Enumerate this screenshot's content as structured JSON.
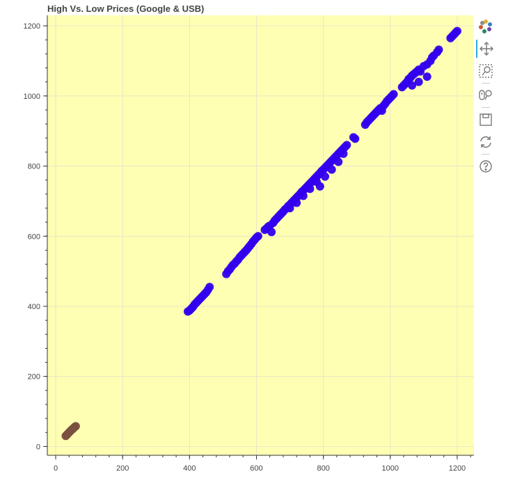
{
  "chart_data": {
    "type": "scatter",
    "title": "High Vs. Low Prices (Google & USB)",
    "xlabel": "",
    "ylabel": "",
    "xlim": [
      -25,
      1250
    ],
    "ylim": [
      -25,
      1230
    ],
    "x_ticks": [
      0,
      200,
      400,
      600,
      800,
      1000,
      1200
    ],
    "y_ticks": [
      0,
      200,
      400,
      600,
      800,
      1000,
      1200
    ],
    "background_color": "#ffffb3",
    "grid": true,
    "series": [
      {
        "color": "#3300ee",
        "points": [
          [
            395,
            385
          ],
          [
            400,
            388
          ],
          [
            405,
            393
          ],
          [
            410,
            398
          ],
          [
            415,
            405
          ],
          [
            420,
            410
          ],
          [
            425,
            415
          ],
          [
            430,
            420
          ],
          [
            435,
            425
          ],
          [
            440,
            430
          ],
          [
            445,
            435
          ],
          [
            450,
            440
          ],
          [
            455,
            447
          ],
          [
            460,
            455
          ],
          [
            510,
            492
          ],
          [
            515,
            500
          ],
          [
            520,
            505
          ],
          [
            525,
            512
          ],
          [
            530,
            518
          ],
          [
            535,
            522
          ],
          [
            540,
            528
          ],
          [
            545,
            533
          ],
          [
            550,
            540
          ],
          [
            555,
            545
          ],
          [
            560,
            550
          ],
          [
            565,
            555
          ],
          [
            570,
            560
          ],
          [
            575,
            566
          ],
          [
            580,
            572
          ],
          [
            585,
            578
          ],
          [
            590,
            585
          ],
          [
            595,
            590
          ],
          [
            600,
            596
          ],
          [
            605,
            600
          ],
          [
            625,
            618
          ],
          [
            630,
            622
          ],
          [
            635,
            627
          ],
          [
            640,
            630
          ],
          [
            645,
            612
          ],
          [
            650,
            638
          ],
          [
            655,
            645
          ],
          [
            660,
            650
          ],
          [
            665,
            655
          ],
          [
            670,
            660
          ],
          [
            675,
            665
          ],
          [
            680,
            670
          ],
          [
            685,
            676
          ],
          [
            690,
            680
          ],
          [
            695,
            686
          ],
          [
            700,
            690
          ],
          [
            705,
            695
          ],
          [
            710,
            700
          ],
          [
            715,
            705
          ],
          [
            720,
            710
          ],
          [
            725,
            715
          ],
          [
            730,
            720
          ],
          [
            735,
            726
          ],
          [
            740,
            730
          ],
          [
            745,
            735
          ],
          [
            750,
            740
          ],
          [
            755,
            745
          ],
          [
            760,
            750
          ],
          [
            765,
            755
          ],
          [
            770,
            760
          ],
          [
            775,
            765
          ],
          [
            780,
            770
          ],
          [
            785,
            775
          ],
          [
            790,
            780
          ],
          [
            795,
            786
          ],
          [
            800,
            790
          ],
          [
            805,
            795
          ],
          [
            810,
            800
          ],
          [
            815,
            805
          ],
          [
            820,
            810
          ],
          [
            825,
            815
          ],
          [
            830,
            820
          ],
          [
            835,
            825
          ],
          [
            840,
            830
          ],
          [
            845,
            835
          ],
          [
            850,
            840
          ],
          [
            855,
            845
          ],
          [
            860,
            850
          ],
          [
            865,
            855
          ],
          [
            870,
            860
          ],
          [
            700,
            680
          ],
          [
            720,
            695
          ],
          [
            740,
            715
          ],
          [
            760,
            735
          ],
          [
            780,
            755
          ],
          [
            790,
            742
          ],
          [
            805,
            770
          ],
          [
            825,
            790
          ],
          [
            845,
            812
          ],
          [
            860,
            835
          ],
          [
            890,
            882
          ],
          [
            895,
            878
          ],
          [
            925,
            918
          ],
          [
            930,
            925
          ],
          [
            935,
            930
          ],
          [
            940,
            935
          ],
          [
            945,
            940
          ],
          [
            950,
            945
          ],
          [
            955,
            950
          ],
          [
            960,
            955
          ],
          [
            965,
            960
          ],
          [
            970,
            965
          ],
          [
            975,
            958
          ],
          [
            980,
            972
          ],
          [
            985,
            978
          ],
          [
            990,
            985
          ],
          [
            995,
            990
          ],
          [
            1000,
            995
          ],
          [
            1005,
            1000
          ],
          [
            1010,
            1005
          ],
          [
            1035,
            1025
          ],
          [
            1040,
            1030
          ],
          [
            1045,
            1035
          ],
          [
            1050,
            1040
          ],
          [
            1055,
            1048
          ],
          [
            1060,
            1052
          ],
          [
            1065,
            1058
          ],
          [
            1070,
            1062
          ],
          [
            1075,
            1066
          ],
          [
            1080,
            1070
          ],
          [
            1085,
            1075
          ],
          [
            1090,
            1070
          ],
          [
            1065,
            1030
          ],
          [
            1085,
            1040
          ],
          [
            1110,
            1055
          ],
          [
            1100,
            1085
          ],
          [
            1110,
            1090
          ],
          [
            1120,
            1100
          ],
          [
            1125,
            1110
          ],
          [
            1130,
            1115
          ],
          [
            1140,
            1125
          ],
          [
            1145,
            1132
          ],
          [
            1180,
            1165
          ],
          [
            1185,
            1170
          ],
          [
            1190,
            1175
          ],
          [
            1195,
            1180
          ],
          [
            1200,
            1185
          ]
        ]
      },
      {
        "color": "#7a5040",
        "points": [
          [
            30,
            30
          ],
          [
            33,
            33
          ],
          [
            36,
            36
          ],
          [
            39,
            39
          ],
          [
            42,
            42
          ],
          [
            45,
            45
          ],
          [
            48,
            48
          ],
          [
            51,
            50
          ],
          [
            54,
            53
          ],
          [
            57,
            56
          ],
          [
            60,
            58
          ]
        ]
      }
    ]
  },
  "toolbar": {
    "tools": [
      {
        "name": "bokeh-logo-icon"
      },
      {
        "name": "pan-tool-icon"
      },
      {
        "name": "box-zoom-tool-icon"
      },
      {
        "name": "wheel-zoom-tool-icon"
      },
      {
        "name": "save-tool-icon"
      },
      {
        "name": "reset-tool-icon"
      },
      {
        "name": "help-tool-icon"
      }
    ]
  }
}
